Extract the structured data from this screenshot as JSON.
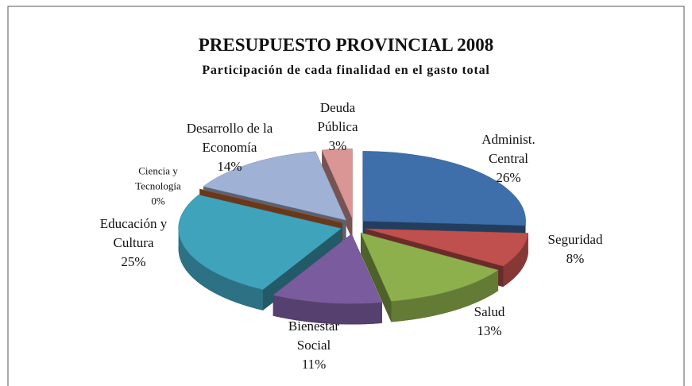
{
  "chart_data": {
    "type": "pie3d",
    "title": "PRESUPUESTO PROVINCIAL 2008",
    "subtitle": "Participación de cada finalidad en el gasto total",
    "categories": [
      "Administ. Central",
      "Seguridad",
      "Salud",
      "Bienestar Social",
      "Educación y Cultura",
      "Ciencia y Tecnología",
      "Desarrollo de la Economía",
      "Deuda Pública"
    ],
    "values": [
      26,
      8,
      13,
      11,
      25,
      0,
      14,
      3
    ],
    "value_labels": [
      "26%",
      "8%",
      "13%",
      "11%",
      "25%",
      "0%",
      "14%",
      "3%"
    ],
    "colors": [
      "#3f6faa",
      "#c0504d",
      "#8db04c",
      "#7a5c9e",
      "#3fa3bc",
      "#c0662b",
      "#9fb2d6",
      "#d99694"
    ]
  }
}
